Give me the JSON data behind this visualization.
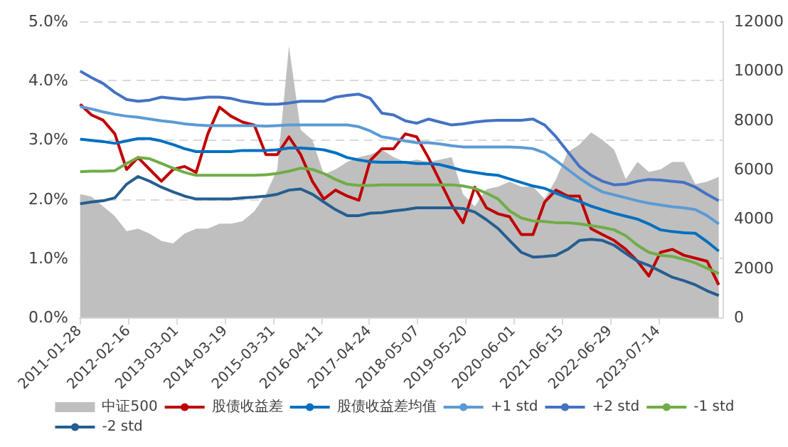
{
  "chart_data": {
    "type": "line",
    "x": [
      "2011-02",
      "2011-05",
      "2011-08",
      "2011-11",
      "2012-02",
      "2012-05",
      "2012-08",
      "2012-11",
      "2013-02",
      "2013-05",
      "2013-08",
      "2013-11",
      "2014-02",
      "2014-05",
      "2014-08",
      "2014-11",
      "2015-02",
      "2015-05",
      "2015-08",
      "2015-11",
      "2016-02",
      "2016-05",
      "2016-08",
      "2016-11",
      "2017-02",
      "2017-05",
      "2017-08",
      "2017-11",
      "2018-02",
      "2018-05",
      "2018-08",
      "2018-11",
      "2019-02",
      "2019-05",
      "2019-08",
      "2019-11",
      "2020-02",
      "2020-05",
      "2020-08",
      "2020-11",
      "2021-02",
      "2021-05",
      "2021-08",
      "2021-11",
      "2022-02",
      "2022-05",
      "2022-08",
      "2022-11",
      "2023-02",
      "2023-05",
      "2023-08",
      "2023-11",
      "2024-02",
      "2024-05",
      "2024-08",
      "2024-11"
    ],
    "series": [
      {
        "name": "中证500",
        "type": "area",
        "axis": "y2",
        "color": "#bfbfbf",
        "values": [
          5000,
          4900,
          4500,
          4100,
          3500,
          3600,
          3400,
          3100,
          3000,
          3400,
          3600,
          3600,
          3800,
          3800,
          3900,
          4300,
          5000,
          6000,
          11000,
          7600,
          7200,
          5800,
          6000,
          6300,
          6500,
          6600,
          6800,
          6500,
          6300,
          6400,
          6300,
          6400,
          6500,
          5000,
          4500,
          5200,
          5300,
          5500,
          5300,
          5300,
          4800,
          5600,
          6700,
          7000,
          7500,
          7200,
          6800,
          5600,
          6300,
          5900,
          6000,
          6300,
          6300,
          5400,
          5500,
          5700
        ]
      },
      {
        "name": "股债收益差",
        "color": "#c00000",
        "values": [
          3.6,
          3.42,
          3.33,
          3.1,
          2.5,
          2.7,
          2.5,
          2.3,
          2.5,
          2.55,
          2.45,
          3.1,
          3.55,
          3.4,
          3.3,
          3.25,
          2.75,
          2.75,
          3.05,
          2.75,
          2.3,
          2.0,
          2.15,
          2.05,
          1.98,
          2.65,
          2.85,
          2.85,
          3.1,
          3.05,
          2.7,
          2.3,
          1.9,
          1.6,
          2.2,
          1.85,
          1.75,
          1.7,
          1.4,
          1.4,
          1.95,
          2.15,
          2.05,
          2.05,
          1.5,
          1.4,
          1.3,
          1.15,
          0.95,
          0.7,
          1.1,
          1.15,
          1.05,
          1.0,
          0.95,
          0.55
        ]
      },
      {
        "name": "股债收益差均值",
        "color": "#0070c0",
        "values": [
          3.01,
          2.99,
          2.97,
          2.94,
          2.98,
          3.02,
          3.02,
          2.98,
          2.92,
          2.85,
          2.8,
          2.8,
          2.8,
          2.8,
          2.82,
          2.82,
          2.82,
          2.83,
          2.86,
          2.86,
          2.85,
          2.83,
          2.78,
          2.7,
          2.66,
          2.63,
          2.62,
          2.62,
          2.62,
          2.6,
          2.6,
          2.58,
          2.53,
          2.48,
          2.45,
          2.42,
          2.4,
          2.34,
          2.28,
          2.22,
          2.18,
          2.1,
          2.02,
          1.96,
          1.88,
          1.82,
          1.76,
          1.71,
          1.66,
          1.58,
          1.48,
          1.45,
          1.43,
          1.42,
          1.28,
          1.12
        ]
      },
      {
        "name": "+1 std",
        "color": "#5b9bd5",
        "values": [
          3.56,
          3.52,
          3.47,
          3.43,
          3.4,
          3.38,
          3.35,
          3.32,
          3.3,
          3.27,
          3.25,
          3.24,
          3.24,
          3.24,
          3.24,
          3.24,
          3.23,
          3.24,
          3.25,
          3.25,
          3.25,
          3.25,
          3.25,
          3.25,
          3.22,
          3.15,
          3.05,
          3.02,
          2.98,
          2.95,
          2.95,
          2.93,
          2.9,
          2.88,
          2.88,
          2.88,
          2.88,
          2.88,
          2.87,
          2.85,
          2.78,
          2.65,
          2.5,
          2.35,
          2.22,
          2.12,
          2.07,
          2.02,
          1.97,
          1.93,
          1.9,
          1.87,
          1.85,
          1.82,
          1.72,
          1.58
        ]
      },
      {
        "name": "+2 std",
        "color": "#4472c4",
        "values": [
          4.16,
          4.05,
          3.95,
          3.8,
          3.68,
          3.65,
          3.67,
          3.72,
          3.7,
          3.68,
          3.7,
          3.72,
          3.72,
          3.7,
          3.65,
          3.62,
          3.6,
          3.6,
          3.62,
          3.65,
          3.65,
          3.65,
          3.72,
          3.75,
          3.77,
          3.7,
          3.45,
          3.42,
          3.32,
          3.28,
          3.35,
          3.3,
          3.25,
          3.27,
          3.3,
          3.32,
          3.33,
          3.33,
          3.33,
          3.35,
          3.25,
          3.05,
          2.8,
          2.55,
          2.4,
          2.3,
          2.24,
          2.25,
          2.3,
          2.33,
          2.32,
          2.3,
          2.28,
          2.2,
          2.08,
          1.97
        ]
      },
      {
        "name": "-1 std",
        "color": "#70ad47",
        "values": [
          2.46,
          2.47,
          2.47,
          2.48,
          2.6,
          2.7,
          2.68,
          2.6,
          2.52,
          2.45,
          2.4,
          2.4,
          2.4,
          2.4,
          2.4,
          2.4,
          2.41,
          2.43,
          2.47,
          2.52,
          2.5,
          2.43,
          2.33,
          2.25,
          2.23,
          2.23,
          2.24,
          2.24,
          2.24,
          2.24,
          2.24,
          2.24,
          2.24,
          2.22,
          2.18,
          2.1,
          2.0,
          1.8,
          1.68,
          1.63,
          1.62,
          1.6,
          1.6,
          1.58,
          1.55,
          1.52,
          1.48,
          1.38,
          1.22,
          1.1,
          1.05,
          1.03,
          0.98,
          0.92,
          0.83,
          0.74
        ]
      },
      {
        "name": "-2 std",
        "color": "#255e91",
        "values": [
          1.92,
          1.95,
          1.97,
          2.02,
          2.25,
          2.38,
          2.3,
          2.2,
          2.12,
          2.05,
          2.0,
          2.0,
          2.0,
          2.0,
          2.02,
          2.03,
          2.05,
          2.08,
          2.15,
          2.17,
          2.08,
          1.95,
          1.82,
          1.72,
          1.72,
          1.76,
          1.77,
          1.8,
          1.82,
          1.85,
          1.85,
          1.85,
          1.85,
          1.84,
          1.78,
          1.65,
          1.5,
          1.3,
          1.1,
          1.02,
          1.03,
          1.05,
          1.15,
          1.3,
          1.32,
          1.3,
          1.22,
          1.08,
          0.95,
          0.88,
          0.78,
          0.68,
          0.62,
          0.55,
          0.45,
          0.37
        ]
      }
    ],
    "xlim": [
      "2011-01-28",
      "2024-12-01"
    ],
    "xticks": [
      "2011-01-28",
      "2012-02-16",
      "2013-03-01",
      "2014-03-19",
      "2015-03-31",
      "2016-04-11",
      "2017-04-24",
      "2018-05-07",
      "2019-05-20",
      "2020-06-01",
      "2021-06-15",
      "2022-06-29",
      "2023-07-14"
    ],
    "ylim": [
      0,
      5
    ],
    "yticks": [
      {
        "value": 0,
        "label": "0.0%"
      },
      {
        "value": 1,
        "label": "1.0%"
      },
      {
        "value": 2,
        "label": "2.0%"
      },
      {
        "value": 3,
        "label": "3.0%"
      },
      {
        "value": 4,
        "label": "4.0%"
      },
      {
        "value": 5,
        "label": "5.0%"
      }
    ],
    "y2lim": [
      0,
      12000
    ],
    "y2ticks": [
      0,
      2000,
      4000,
      6000,
      8000,
      10000,
      12000
    ],
    "grid": "y",
    "legend": "bottom",
    "marker": "none"
  }
}
